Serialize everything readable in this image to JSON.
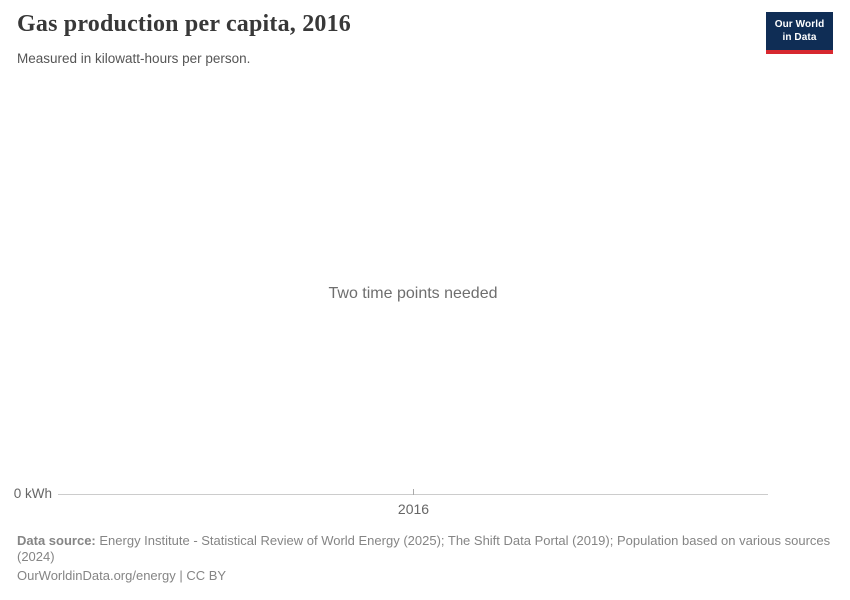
{
  "header": {
    "title": "Gas production per capita, 2016",
    "subtitle": "Measured in kilowatt-hours per person.",
    "logo": {
      "line1": "Our World",
      "line2": "in Data",
      "bg_color": "#0f2d55",
      "underline_color": "#d7282f",
      "text_color": "#ffffff"
    }
  },
  "chart": {
    "empty_message": "Two time points needed",
    "y_axis_label": "0 kWh",
    "x_axis_tick": "2016",
    "axis_color": "#cccccc"
  },
  "footer": {
    "source_label": "Data source:",
    "source_text": "Energy Institute - Statistical Review of World Energy (2025); The Shift Data Portal (2019); Population based on various sources (2024)",
    "attribution": "OurWorldinData.org/energy | CC BY"
  },
  "chart_data": {
    "type": "line",
    "title": "Gas production per capita, 2016",
    "subtitle": "Measured in kilowatt-hours per person.",
    "ylabel": "kilowatt-hours per person",
    "series": [],
    "x_ticks": [
      "2016"
    ],
    "y_ticks": [
      "0 kWh"
    ],
    "grid": false,
    "legend": "none",
    "note": "Two time points needed — chart is in an empty state with no plotted data"
  }
}
